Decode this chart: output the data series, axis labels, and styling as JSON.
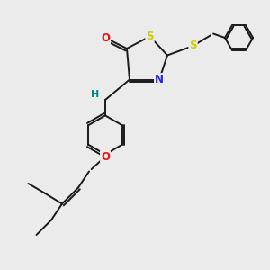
{
  "background_color": "#ebebeb",
  "bond_color": "#1a1a1a",
  "atom_colors": {
    "O": "#ee1111",
    "S": "#cccc00",
    "N": "#2222ee",
    "H": "#008888",
    "C": "#1a1a1a"
  },
  "figsize": [
    3.0,
    3.0
  ],
  "dpi": 100,
  "lw": 1.4
}
